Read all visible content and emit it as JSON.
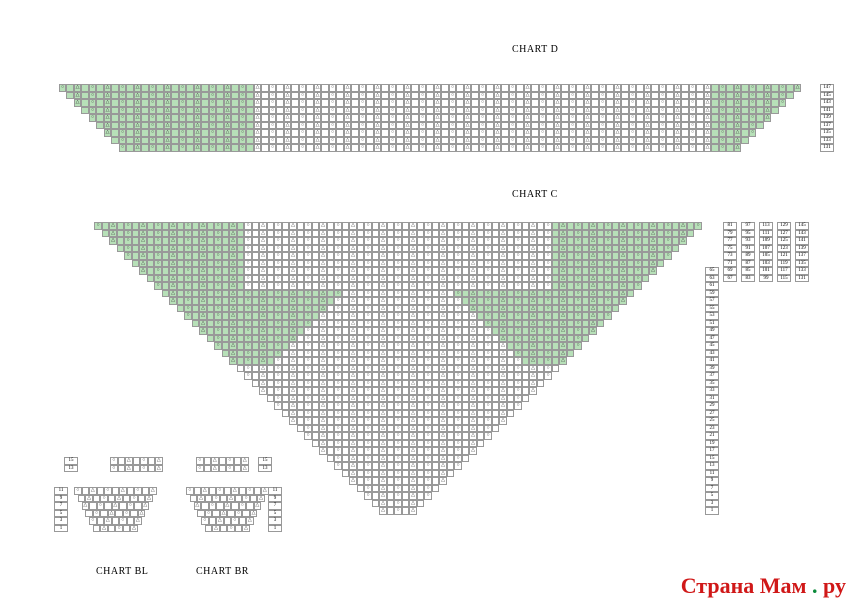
{
  "titles": {
    "chartD": "CHART D",
    "chartC": "CHART C",
    "chartBL": "CHART BL",
    "chartBR": "CHART BR"
  },
  "colors": {
    "green": "#b7e0b8",
    "white": "#ffffff",
    "border": "#999999",
    "text": "#000000",
    "wm_red": "#d01818",
    "wm_green": "#0a8a3a"
  },
  "chartD": {
    "rows": 9,
    "topWidth": 99,
    "rowNumbers": [
      147,
      145,
      143,
      141,
      139,
      137,
      135,
      133,
      131
    ],
    "greenLeft": [
      26,
      25,
      24,
      23,
      22,
      21,
      20,
      19,
      18
    ],
    "greenRight": [
      12,
      11,
      10,
      9,
      8,
      7,
      6,
      5,
      4
    ]
  },
  "chartC": {
    "rows": 39,
    "topWidth": 81,
    "greenRows": 19,
    "rowNumCols": [
      [
        65,
        63,
        61,
        59,
        57,
        55,
        53,
        51,
        49,
        47,
        45,
        43,
        41,
        39,
        37,
        35,
        33,
        31,
        29,
        27,
        25,
        23,
        21,
        19,
        17,
        15,
        13,
        11,
        9,
        7,
        5,
        3,
        1
      ],
      [
        81,
        79,
        77,
        75,
        73,
        71,
        69,
        67
      ],
      [
        97,
        95,
        93,
        91,
        89,
        87,
        85,
        83
      ],
      [
        113,
        111,
        109,
        107,
        105,
        103,
        101,
        99
      ],
      [
        129,
        127,
        125,
        123,
        121,
        119,
        117,
        115
      ],
      [
        145,
        143,
        141,
        139,
        137,
        135,
        133,
        131
      ]
    ]
  },
  "chartBL": {
    "rowNumsTop": [
      15,
      13
    ],
    "rowNumsBot": [
      11,
      9,
      7,
      5,
      3,
      1
    ]
  },
  "chartBR": {
    "rowNumsTop": [
      15,
      13
    ],
    "rowNumsBot": [
      11,
      9,
      7,
      5,
      3,
      1
    ]
  },
  "watermark": {
    "text1": "Страна Мам",
    "dot": ".",
    "text2": "ру"
  }
}
